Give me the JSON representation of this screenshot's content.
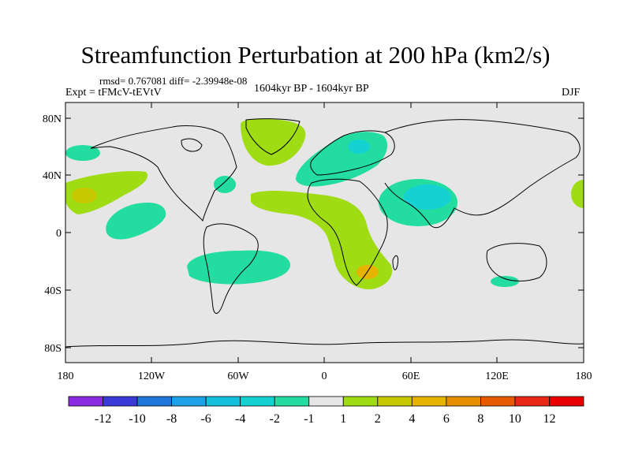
{
  "title": "Streamfunction Perturbation at 200 hPa (km2/s)",
  "stats": "rmsd= 0.767081 diff= -2.39948e-08",
  "experiment": "Expt = tFMcV-tEVtV",
  "period": "1604kyr BP - 1604kyr BP",
  "season": "DJF",
  "chart_data": {
    "type": "heatmap",
    "map_projection": "cylindrical-equidistant",
    "x_ticks": [
      "180",
      "120W",
      "60W",
      "0",
      "60E",
      "120E",
      "180"
    ],
    "y_ticks": [
      "80N",
      "40N",
      "0",
      "40S",
      "80S"
    ],
    "colorbar": {
      "labels": [
        "-12",
        "-10",
        "-8",
        "-6",
        "-4",
        "-2",
        "-1",
        "1",
        "2",
        "4",
        "6",
        "8",
        "10",
        "12"
      ],
      "colors": [
        "#8a2be2",
        "#3a3ad8",
        "#1e78dc",
        "#1ea0e6",
        "#12c0dc",
        "#14d2d2",
        "#22dca0",
        "#e6e6e6",
        "#a0dc14",
        "#c8c800",
        "#e6b400",
        "#e68c00",
        "#e65a00",
        "#e62814",
        "#e60000"
      ]
    },
    "background_color": "#e6e6e6",
    "anomalies": [
      {
        "region": "NW Pacific / Aleutians",
        "lon": -165,
        "lat": 54,
        "category": "-1 to -2"
      },
      {
        "region": "Central North Pacific",
        "lon": -155,
        "lat": 28,
        "category": "1 to 4"
      },
      {
        "region": "Tropical East Pacific",
        "lon": -140,
        "lat": 10,
        "category": "-1 to -2"
      },
      {
        "region": "Greenland",
        "lon": -40,
        "lat": 70,
        "category": "1 to 2"
      },
      {
        "region": "Gulf Stream",
        "lon": -70,
        "lat": 34,
        "category": "-1 to -2"
      },
      {
        "region": "Europe",
        "lon": 20,
        "lat": 55,
        "category": "-1 to -4"
      },
      {
        "region": "Middle East",
        "lon": 60,
        "lat": 28,
        "category": "-2 to -4"
      },
      {
        "region": "Tropical Atlantic",
        "lon": 0,
        "lat": 15,
        "category": "1 to 2"
      },
      {
        "region": "Southern Africa",
        "lon": 30,
        "lat": -25,
        "category": "1 to 6"
      },
      {
        "region": "South America / S. Atlantic",
        "lon": -60,
        "lat": -33,
        "category": "-1 to -4"
      },
      {
        "region": "Southern Australia",
        "lon": 135,
        "lat": -42,
        "category": "-1 to -2"
      },
      {
        "region": "Dateline North Pacific",
        "lon": 180,
        "lat": 30,
        "category": "1 to 2"
      }
    ]
  }
}
